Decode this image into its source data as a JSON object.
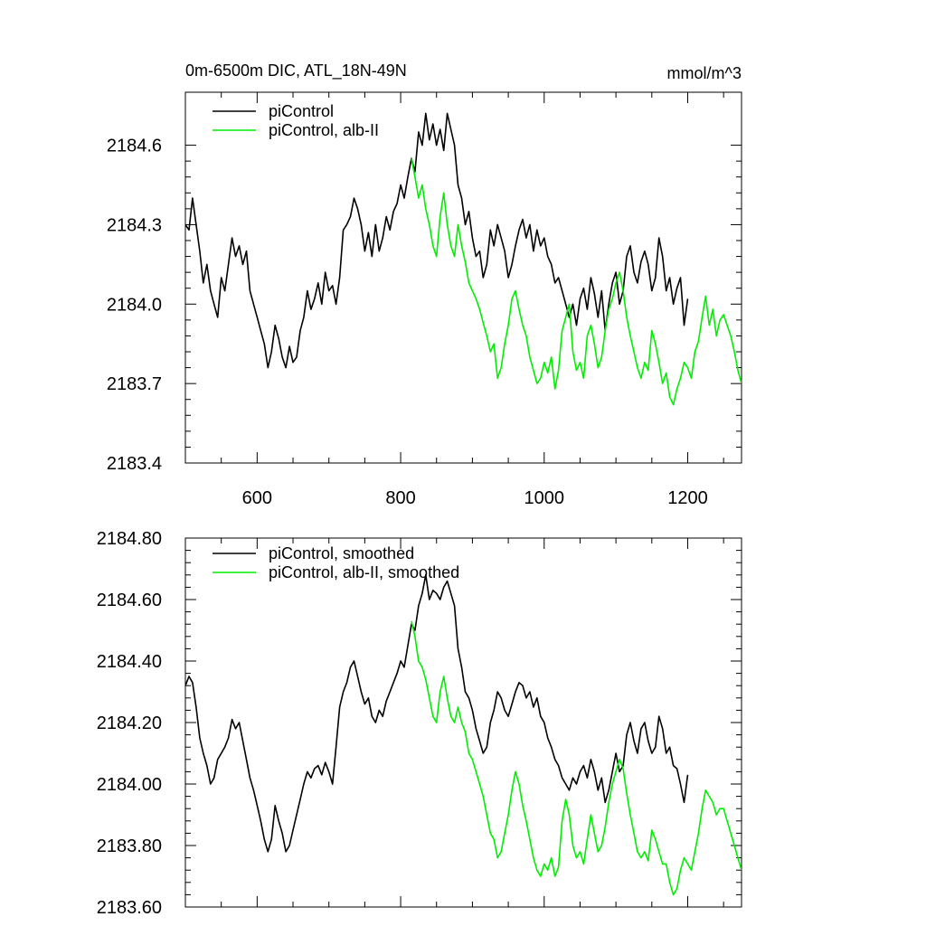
{
  "chart_data": [
    {
      "type": "line",
      "title": "0m-6500m DIC, ATL_18N-49N",
      "units": "mmol/m^3",
      "xlim": [
        500,
        1275
      ],
      "ylim": [
        2183.4,
        2184.8
      ],
      "x_ticks": [
        600,
        800,
        1000,
        1200
      ],
      "y_ticks": [
        2183.4,
        2183.7,
        2184.0,
        2184.3,
        2184.6
      ],
      "y_tick_labels": [
        "2183.4",
        "2183.7",
        "2184.0",
        "2184.3",
        "2184.6"
      ],
      "legend_position": "top-left",
      "series": [
        {
          "name": "piControl",
          "color": "#000000",
          "x": [
            500,
            505,
            510,
            515,
            520,
            525,
            530,
            535,
            540,
            545,
            550,
            555,
            560,
            565,
            570,
            575,
            580,
            585,
            590,
            595,
            600,
            605,
            610,
            615,
            620,
            625,
            630,
            635,
            640,
            645,
            650,
            655,
            660,
            665,
            670,
            675,
            680,
            685,
            690,
            695,
            700,
            705,
            710,
            715,
            720,
            725,
            730,
            735,
            740,
            745,
            750,
            755,
            760,
            765,
            770,
            775,
            780,
            785,
            790,
            795,
            800,
            805,
            810,
            815,
            820,
            825,
            830,
            835,
            840,
            845,
            850,
            855,
            860,
            865,
            870,
            875,
            880,
            885,
            890,
            895,
            900,
            905,
            910,
            915,
            920,
            925,
            930,
            935,
            940,
            945,
            950,
            955,
            960,
            965,
            970,
            975,
            980,
            985,
            990,
            995,
            1000,
            1005,
            1010,
            1015,
            1020,
            1025,
            1030,
            1035,
            1040,
            1045,
            1050,
            1055,
            1060,
            1065,
            1070,
            1075,
            1080,
            1085,
            1090,
            1095,
            1100,
            1105,
            1110,
            1115,
            1120,
            1125,
            1130,
            1135,
            1140,
            1145,
            1150,
            1155,
            1160,
            1165,
            1170,
            1175,
            1180,
            1185,
            1190,
            1195,
            1200
          ],
          "y": [
            2184.3,
            2184.28,
            2184.4,
            2184.3,
            2184.2,
            2184.08,
            2184.15,
            2184.05,
            2184.0,
            2183.95,
            2184.1,
            2184.05,
            2184.15,
            2184.25,
            2184.18,
            2184.22,
            2184.15,
            2184.2,
            2184.05,
            2184.0,
            2183.95,
            2183.9,
            2183.85,
            2183.76,
            2183.82,
            2183.92,
            2183.87,
            2183.8,
            2183.76,
            2183.84,
            2183.78,
            2183.8,
            2183.9,
            2183.95,
            2184.05,
            2183.98,
            2184.02,
            2184.08,
            2184.0,
            2184.12,
            2184.05,
            2184.07,
            2184.0,
            2184.1,
            2184.28,
            2184.3,
            2184.33,
            2184.4,
            2184.36,
            2184.3,
            2184.2,
            2184.27,
            2184.18,
            2184.3,
            2184.2,
            2184.25,
            2184.33,
            2184.28,
            2184.35,
            2184.38,
            2184.45,
            2184.4,
            2184.48,
            2184.55,
            2184.5,
            2184.65,
            2184.6,
            2184.72,
            2184.62,
            2184.68,
            2184.6,
            2184.66,
            2184.58,
            2184.72,
            2184.66,
            2184.6,
            2184.45,
            2184.4,
            2184.3,
            2184.35,
            2184.25,
            2184.18,
            2184.2,
            2184.1,
            2184.15,
            2184.28,
            2184.22,
            2184.3,
            2184.25,
            2184.2,
            2184.1,
            2184.15,
            2184.22,
            2184.28,
            2184.32,
            2184.25,
            2184.3,
            2184.2,
            2184.28,
            2184.22,
            2184.25,
            2184.18,
            2184.15,
            2184.08,
            2184.1,
            2184.05,
            2184.0,
            2183.95,
            2184.0,
            2183.92,
            2184.02,
            2184.06,
            2183.98,
            2184.1,
            2184.04,
            2183.95,
            2184.05,
            2183.9,
            2184.0,
            2184.08,
            2184.12,
            2184.0,
            2184.05,
            2184.18,
            2184.22,
            2184.12,
            2184.08,
            2184.16,
            2184.2,
            2184.15,
            2184.05,
            2184.1,
            2184.25,
            2184.18,
            2184.05,
            2184.1,
            2184.0,
            2184.06,
            2184.1,
            2183.92,
            2184.02
          ]
        },
        {
          "name": "piControl, alb-II",
          "color": "#00ee00",
          "x": [
            815,
            820,
            825,
            830,
            835,
            840,
            845,
            850,
            855,
            860,
            865,
            870,
            875,
            880,
            885,
            890,
            895,
            900,
            905,
            910,
            915,
            920,
            925,
            930,
            935,
            940,
            945,
            950,
            955,
            960,
            965,
            970,
            975,
            980,
            985,
            990,
            995,
            1000,
            1005,
            1010,
            1015,
            1020,
            1025,
            1030,
            1035,
            1040,
            1045,
            1050,
            1055,
            1060,
            1065,
            1070,
            1075,
            1080,
            1085,
            1090,
            1095,
            1100,
            1105,
            1110,
            1115,
            1120,
            1125,
            1130,
            1135,
            1140,
            1145,
            1150,
            1155,
            1160,
            1165,
            1170,
            1175,
            1180,
            1185,
            1190,
            1195,
            1200,
            1205,
            1210,
            1215,
            1220,
            1225,
            1230,
            1235,
            1240,
            1245,
            1250,
            1255,
            1260,
            1265,
            1270,
            1275
          ],
          "y": [
            2184.55,
            2184.48,
            2184.4,
            2184.45,
            2184.36,
            2184.3,
            2184.22,
            2184.18,
            2184.33,
            2184.42,
            2184.3,
            2184.22,
            2184.18,
            2184.3,
            2184.22,
            2184.16,
            2184.08,
            2184.05,
            2184.02,
            2183.98,
            2183.93,
            2183.88,
            2183.82,
            2183.85,
            2183.72,
            2183.76,
            2183.85,
            2183.92,
            2184.02,
            2184.05,
            2183.98,
            2183.92,
            2183.88,
            2183.8,
            2183.75,
            2183.7,
            2183.72,
            2183.78,
            2183.74,
            2183.8,
            2183.68,
            2183.75,
            2183.9,
            2183.95,
            2184.0,
            2183.82,
            2183.75,
            2183.78,
            2183.72,
            2183.88,
            2183.92,
            2183.85,
            2183.76,
            2183.8,
            2183.9,
            2183.98,
            2184.02,
            2184.08,
            2184.12,
            2184.05,
            2183.95,
            2183.88,
            2183.82,
            2183.76,
            2183.72,
            2183.78,
            2183.75,
            2183.9,
            2183.85,
            2183.78,
            2183.7,
            2183.74,
            2183.65,
            2183.62,
            2183.68,
            2183.72,
            2183.78,
            2183.76,
            2183.72,
            2183.82,
            2183.86,
            2183.95,
            2184.03,
            2183.92,
            2183.98,
            2183.88,
            2183.94,
            2183.96,
            2183.92,
            2183.88,
            2183.82,
            2183.75,
            2183.7
          ]
        }
      ]
    },
    {
      "type": "line",
      "xlim": [
        500,
        1275
      ],
      "ylim": [
        2183.6,
        2184.8
      ],
      "x_ticks": [
        600,
        800,
        1000,
        1200
      ],
      "y_ticks": [
        2183.6,
        2183.8,
        2184.0,
        2184.2,
        2184.4,
        2184.6,
        2184.8
      ],
      "y_tick_labels": [
        "2183.60",
        "2183.80",
        "2184.00",
        "2184.20",
        "2184.40",
        "2184.60",
        "2184.80"
      ],
      "legend_position": "top-left",
      "series": [
        {
          "name": "piControl, smoothed",
          "color": "#000000",
          "x": [
            500,
            505,
            510,
            515,
            520,
            525,
            530,
            535,
            540,
            545,
            550,
            555,
            560,
            565,
            570,
            575,
            580,
            585,
            590,
            595,
            600,
            605,
            610,
            615,
            620,
            625,
            630,
            635,
            640,
            645,
            650,
            655,
            660,
            665,
            670,
            675,
            680,
            685,
            690,
            695,
            700,
            705,
            710,
            715,
            720,
            725,
            730,
            735,
            740,
            745,
            750,
            755,
            760,
            765,
            770,
            775,
            780,
            785,
            790,
            795,
            800,
            805,
            810,
            815,
            820,
            825,
            830,
            835,
            840,
            845,
            850,
            855,
            860,
            865,
            870,
            875,
            880,
            885,
            890,
            895,
            900,
            905,
            910,
            915,
            920,
            925,
            930,
            935,
            940,
            945,
            950,
            955,
            960,
            965,
            970,
            975,
            980,
            985,
            990,
            995,
            1000,
            1005,
            1010,
            1015,
            1020,
            1025,
            1030,
            1035,
            1040,
            1045,
            1050,
            1055,
            1060,
            1065,
            1070,
            1075,
            1080,
            1085,
            1090,
            1095,
            1100,
            1105,
            1110,
            1115,
            1120,
            1125,
            1130,
            1135,
            1140,
            1145,
            1150,
            1155,
            1160,
            1165,
            1170,
            1175,
            1180,
            1185,
            1190,
            1195,
            1200
          ],
          "y": [
            2184.32,
            2184.35,
            2184.33,
            2184.25,
            2184.15,
            2184.1,
            2184.06,
            2184.0,
            2184.02,
            2184.08,
            2184.1,
            2184.12,
            2184.15,
            2184.21,
            2184.18,
            2184.2,
            2184.14,
            2184.08,
            2184.02,
            2183.98,
            2183.93,
            2183.88,
            2183.82,
            2183.78,
            2183.82,
            2183.93,
            2183.88,
            2183.84,
            2183.78,
            2183.8,
            2183.85,
            2183.9,
            2183.95,
            2184.0,
            2184.04,
            2184.02,
            2184.05,
            2184.06,
            2184.03,
            2184.07,
            2184.04,
            2184.0,
            2184.12,
            2184.25,
            2184.3,
            2184.33,
            2184.38,
            2184.4,
            2184.35,
            2184.3,
            2184.26,
            2184.28,
            2184.22,
            2184.2,
            2184.24,
            2184.22,
            2184.27,
            2184.3,
            2184.33,
            2184.36,
            2184.4,
            2184.38,
            2184.45,
            2184.52,
            2184.5,
            2184.58,
            2184.62,
            2184.68,
            2184.6,
            2184.63,
            2184.62,
            2184.6,
            2184.64,
            2184.66,
            2184.62,
            2184.58,
            2184.44,
            2184.38,
            2184.3,
            2184.28,
            2184.24,
            2184.18,
            2184.14,
            2184.1,
            2184.12,
            2184.2,
            2184.24,
            2184.3,
            2184.28,
            2184.24,
            2184.22,
            2184.26,
            2184.3,
            2184.33,
            2184.32,
            2184.28,
            2184.3,
            2184.25,
            2184.28,
            2184.22,
            2184.2,
            2184.15,
            2184.12,
            2184.08,
            2184.06,
            2184.02,
            2184.0,
            2183.98,
            2184.02,
            2184.0,
            2184.04,
            2184.06,
            2184.02,
            2184.08,
            2184.04,
            2183.98,
            2184.02,
            2183.94,
            2183.98,
            2184.04,
            2184.1,
            2184.04,
            2184.06,
            2184.16,
            2184.2,
            2184.14,
            2184.1,
            2184.18,
            2184.2,
            2184.14,
            2184.1,
            2184.12,
            2184.22,
            2184.18,
            2184.1,
            2184.12,
            2184.06,
            2184.05,
            2184.0,
            2183.94,
            2184.03
          ]
        },
        {
          "name": "piControl, alb-II, smoothed",
          "color": "#00ee00",
          "x": [
            815,
            820,
            825,
            830,
            835,
            840,
            845,
            850,
            855,
            860,
            865,
            870,
            875,
            880,
            885,
            890,
            895,
            900,
            905,
            910,
            915,
            920,
            925,
            930,
            935,
            940,
            945,
            950,
            955,
            960,
            965,
            970,
            975,
            980,
            985,
            990,
            995,
            1000,
            1005,
            1010,
            1015,
            1020,
            1025,
            1030,
            1035,
            1040,
            1045,
            1050,
            1055,
            1060,
            1065,
            1070,
            1075,
            1080,
            1085,
            1090,
            1095,
            1100,
            1105,
            1110,
            1115,
            1120,
            1125,
            1130,
            1135,
            1140,
            1145,
            1150,
            1155,
            1160,
            1165,
            1170,
            1175,
            1180,
            1185,
            1190,
            1195,
            1200,
            1205,
            1210,
            1215,
            1220,
            1225,
            1230,
            1235,
            1240,
            1245,
            1250,
            1255,
            1260,
            1265,
            1270,
            1275
          ],
          "y": [
            2184.53,
            2184.48,
            2184.4,
            2184.38,
            2184.34,
            2184.28,
            2184.22,
            2184.2,
            2184.3,
            2184.35,
            2184.28,
            2184.22,
            2184.2,
            2184.25,
            2184.2,
            2184.17,
            2184.1,
            2184.08,
            2184.04,
            2184.0,
            2183.96,
            2183.9,
            2183.84,
            2183.82,
            2183.76,
            2183.78,
            2183.84,
            2183.9,
            2183.98,
            2184.04,
            2184.0,
            2183.93,
            2183.88,
            2183.82,
            2183.76,
            2183.72,
            2183.7,
            2183.74,
            2183.72,
            2183.76,
            2183.7,
            2183.73,
            2183.88,
            2183.95,
            2183.9,
            2183.8,
            2183.76,
            2183.78,
            2183.74,
            2183.82,
            2183.9,
            2183.84,
            2183.78,
            2183.8,
            2183.86,
            2183.94,
            2184.0,
            2184.04,
            2184.08,
            2184.05,
            2183.97,
            2183.9,
            2183.84,
            2183.78,
            2183.76,
            2183.78,
            2183.75,
            2183.85,
            2183.82,
            2183.78,
            2183.74,
            2183.74,
            2183.68,
            2183.64,
            2183.66,
            2183.72,
            2183.76,
            2183.74,
            2183.72,
            2183.78,
            2183.84,
            2183.92,
            2183.98,
            2183.96,
            2183.94,
            2183.9,
            2183.92,
            2183.92,
            2183.88,
            2183.84,
            2183.8,
            2183.76,
            2183.72
          ]
        }
      ]
    }
  ]
}
